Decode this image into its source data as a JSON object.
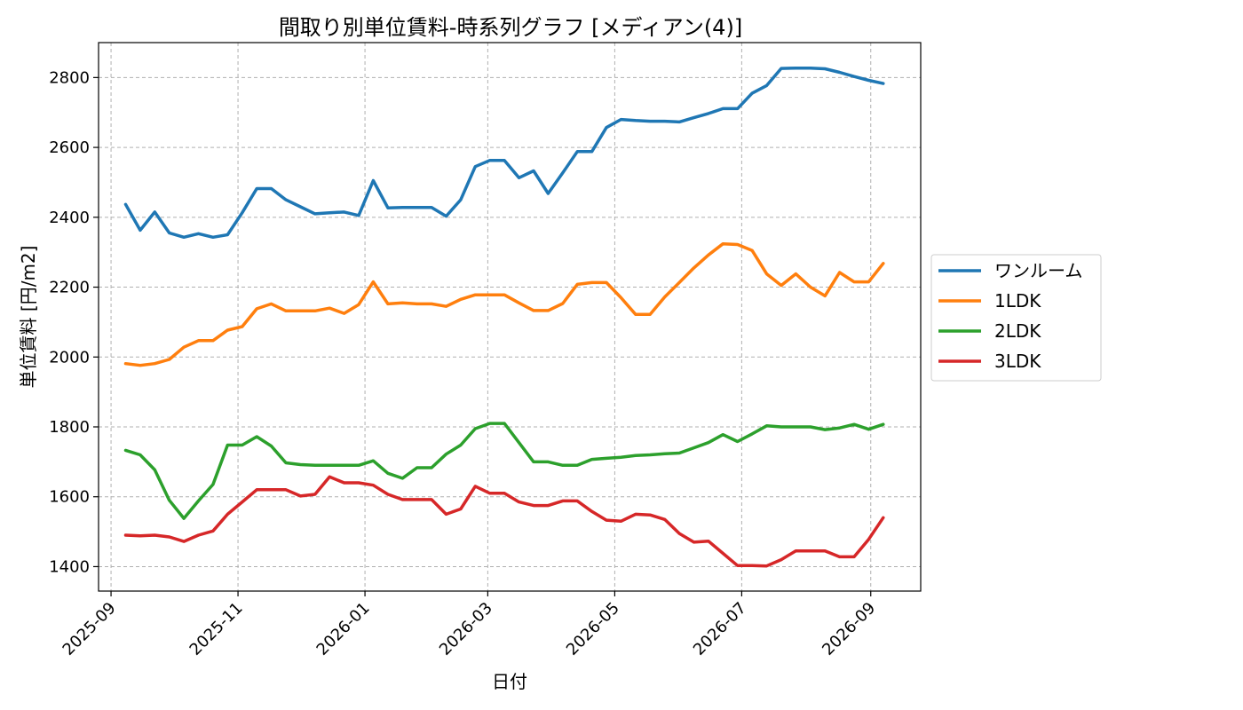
{
  "chart_data": {
    "type": "line",
    "title": "間取り別単位賃料-時系列グラフ [メディアン(4)]",
    "xlabel": "日付",
    "ylabel": "単位賃料 [円/m2]",
    "ylim": [
      1330,
      2900
    ],
    "yticks": [
      1400,
      1600,
      1800,
      2000,
      2200,
      2400,
      2600,
      2800
    ],
    "xlim": [
      "2025-08-26",
      "2026-09-25"
    ],
    "xticks": [
      "2025-09",
      "2025-11",
      "2026-01",
      "2026-03",
      "2026-05",
      "2026-07",
      "2026-09"
    ],
    "grid": true,
    "legend_position": "center-right",
    "x": [
      "2025-09-08",
      "2025-09-15",
      "2025-09-22",
      "2025-09-29",
      "2025-10-06",
      "2025-10-13",
      "2025-10-20",
      "2025-10-27",
      "2025-11-03",
      "2025-11-10",
      "2025-11-17",
      "2025-11-24",
      "2025-12-01",
      "2025-12-08",
      "2025-12-15",
      "2025-12-22",
      "2025-12-29",
      "2026-01-05",
      "2026-01-12",
      "2026-01-19",
      "2026-01-26",
      "2026-02-02",
      "2026-02-09",
      "2026-02-16",
      "2026-02-23",
      "2026-03-02",
      "2026-03-09",
      "2026-03-16",
      "2026-03-23",
      "2026-03-30",
      "2026-04-06",
      "2026-04-13",
      "2026-04-20",
      "2026-04-27",
      "2026-05-04",
      "2026-05-11",
      "2026-05-18",
      "2026-05-25",
      "2026-06-01",
      "2026-06-08",
      "2026-06-15",
      "2026-06-22",
      "2026-06-29",
      "2026-07-06",
      "2026-07-13",
      "2026-07-20",
      "2026-07-27",
      "2026-08-03",
      "2026-08-10",
      "2026-08-17",
      "2026-08-24",
      "2026-08-31",
      "2026-09-07"
    ],
    "series": [
      {
        "name": "ワンルーム",
        "color": "#1f77b4",
        "values": [
          2437,
          2363,
          2415,
          2355,
          2343,
          2353,
          2343,
          2350,
          2413,
          2482,
          2482,
          2450,
          2430,
          2410,
          2413,
          2415,
          2405,
          2505,
          2427,
          2428,
          2428,
          2428,
          2403,
          2450,
          2545,
          2563,
          2563,
          2513,
          2533,
          2468,
          2527,
          2588,
          2588,
          2657,
          2680,
          2677,
          2675,
          2675,
          2673,
          2685,
          2697,
          2711,
          2711,
          2755,
          2777,
          2826,
          2827,
          2827,
          2825,
          2815,
          2803,
          2792,
          2783
        ]
      },
      {
        "name": "1LDK",
        "color": "#ff7f0e",
        "values": [
          1981,
          1976,
          1981,
          1993,
          2028,
          2047,
          2047,
          2077,
          2087,
          2138,
          2152,
          2132,
          2132,
          2132,
          2140,
          2125,
          2150,
          2215,
          2152,
          2155,
          2152,
          2152,
          2145,
          2165,
          2178,
          2178,
          2178,
          2155,
          2133,
          2133,
          2153,
          2208,
          2213,
          2213,
          2170,
          2122,
          2122,
          2172,
          2213,
          2255,
          2292,
          2324,
          2322,
          2305,
          2238,
          2205,
          2238,
          2200,
          2175,
          2242,
          2215,
          2215,
          2268
        ]
      },
      {
        "name": "2LDK",
        "color": "#2ca02c",
        "values": [
          1733,
          1720,
          1677,
          1590,
          1538,
          1588,
          1635,
          1748,
          1748,
          1772,
          1745,
          1697,
          1692,
          1690,
          1690,
          1690,
          1690,
          1703,
          1667,
          1653,
          1683,
          1683,
          1722,
          1748,
          1795,
          1810,
          1810,
          1755,
          1700,
          1700,
          1690,
          1690,
          1707,
          1710,
          1713,
          1718,
          1720,
          1723,
          1725,
          1740,
          1755,
          1778,
          1758,
          1780,
          1803,
          1800,
          1800,
          1800,
          1792,
          1797,
          1807,
          1793,
          1807
        ]
      },
      {
        "name": "3LDK",
        "color": "#d62728",
        "values": [
          1490,
          1488,
          1490,
          1485,
          1472,
          1490,
          1502,
          1550,
          1585,
          1620,
          1620,
          1620,
          1602,
          1607,
          1657,
          1640,
          1640,
          1633,
          1607,
          1592,
          1592,
          1592,
          1550,
          1565,
          1630,
          1610,
          1610,
          1585,
          1575,
          1575,
          1588,
          1588,
          1558,
          1533,
          1530,
          1550,
          1548,
          1535,
          1495,
          1470,
          1473,
          1438,
          1403,
          1403,
          1402,
          1420,
          1445,
          1445,
          1445,
          1428,
          1428,
          1478,
          1540
        ]
      }
    ]
  }
}
